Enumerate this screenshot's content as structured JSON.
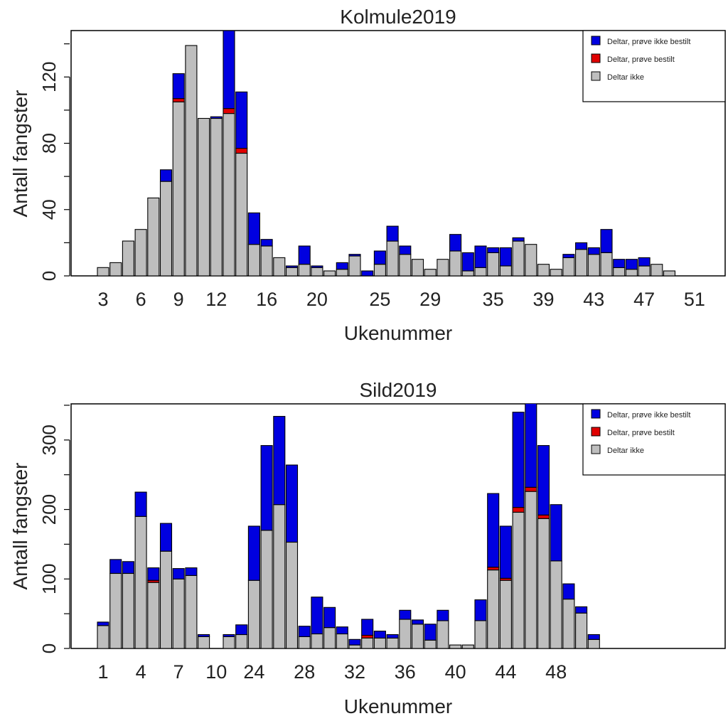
{
  "colors": {
    "participating_not_ordered": "#0000e0",
    "participating_ordered": "#e00000",
    "not_participating": "#bebebe"
  },
  "legend_labels": [
    "Deltar, prøve ikke bestilt",
    "Deltar, prøve bestilt",
    "Deltar ikke"
  ],
  "chart_data": [
    {
      "type": "bar",
      "stacked": true,
      "title": "Kolmule2019",
      "xlabel": "Ukenummer",
      "ylabel": "Antall fangster",
      "ylim": [
        0,
        148
      ],
      "yticks": [
        0,
        40,
        80,
        120
      ],
      "legend_position": "top-right",
      "categories": [
        "3",
        "4",
        "5",
        "6",
        "7",
        "8",
        "9",
        "10",
        "11",
        "12",
        "13",
        "14",
        "15",
        "16",
        "17",
        "18",
        "19",
        "20",
        "21",
        "22",
        "23",
        "24",
        "25",
        "26",
        "27",
        "28",
        "29",
        "30",
        "31",
        "32",
        "33",
        "34",
        "35",
        "36",
        "37",
        "38",
        "39",
        "40",
        "41",
        "42",
        "43",
        "44",
        "45",
        "46",
        "47",
        "48",
        "49",
        "50",
        "51"
      ],
      "x_tick_labels": [
        "3",
        "6",
        "9",
        "12",
        "16",
        "20",
        "25",
        "29",
        "35",
        "39",
        "43",
        "47",
        "51"
      ],
      "x_tick_indices": [
        0,
        3,
        6,
        9,
        13,
        17,
        22,
        26,
        31,
        35,
        39,
        43,
        47
      ],
      "series": [
        {
          "name": "Deltar ikke",
          "values": [
            5,
            8,
            21,
            28,
            47,
            57,
            105,
            139,
            95,
            95,
            98,
            74,
            19,
            18,
            11,
            5,
            7,
            5,
            3,
            4,
            12,
            0,
            7,
            21,
            13,
            10,
            4,
            10,
            15,
            3,
            5,
            14,
            6,
            21,
            19,
            7,
            4,
            11,
            16,
            13,
            14,
            5,
            4,
            6,
            7,
            3,
            0,
            0,
            0
          ]
        },
        {
          "name": "Deltar, prøve bestilt",
          "values": [
            0,
            0,
            0,
            0,
            0,
            0,
            2,
            0,
            0,
            0,
            3,
            3,
            0,
            0,
            0,
            0,
            0,
            0,
            0,
            0,
            0,
            0,
            0,
            0,
            0,
            0,
            0,
            0,
            0,
            0,
            0,
            0,
            0,
            0,
            0,
            0,
            0,
            0,
            0,
            0,
            0,
            0,
            0,
            0,
            0,
            0,
            0,
            0,
            0
          ]
        },
        {
          "name": "Deltar, prøve ikke bestilt",
          "values": [
            0,
            0,
            0,
            0,
            0,
            7,
            15,
            0,
            0,
            1,
            47,
            34,
            19,
            4,
            0,
            1,
            11,
            1,
            0,
            4,
            1,
            3,
            8,
            9,
            5,
            0,
            0,
            0,
            10,
            11,
            13,
            3,
            11,
            2,
            0,
            0,
            0,
            2,
            4,
            4,
            14,
            5,
            6,
            5,
            0,
            0,
            0,
            0,
            0
          ]
        }
      ]
    },
    {
      "type": "bar",
      "stacked": true,
      "title": "Sild2019",
      "xlabel": "Ukenummer",
      "ylabel": "Antall fangster",
      "ylim": [
        0,
        352
      ],
      "yticks": [
        0,
        100,
        200,
        300
      ],
      "legend_position": "top-right",
      "categories": [
        "1",
        "2",
        "3",
        "4",
        "5",
        "6",
        "7",
        "8",
        "9",
        "10",
        "11",
        "12",
        "24",
        "25",
        "26",
        "27",
        "28",
        "29",
        "30",
        "31",
        "32",
        "33",
        "34",
        "35",
        "36",
        "37",
        "38",
        "39",
        "40",
        "41",
        "42",
        "43",
        "44",
        "45",
        "46",
        "47",
        "48",
        "49",
        "50",
        "51"
      ],
      "x_tick_labels": [
        "1",
        "4",
        "7",
        "10",
        "24",
        "28",
        "32",
        "36",
        "40",
        "44",
        "48"
      ],
      "x_tick_indices": [
        0,
        3,
        6,
        9,
        12,
        16,
        20,
        24,
        28,
        32,
        36
      ],
      "series": [
        {
          "name": "Deltar ikke",
          "values": [
            33,
            108,
            108,
            190,
            95,
            140,
            100,
            105,
            17,
            0,
            17,
            20,
            98,
            170,
            207,
            153,
            17,
            21,
            30,
            21,
            5,
            15,
            15,
            15,
            42,
            35,
            12,
            40,
            5,
            5,
            40,
            113,
            98,
            196,
            226,
            187,
            126,
            71,
            51,
            13
          ]
        },
        {
          "name": "Deltar, prøve bestilt",
          "values": [
            0,
            0,
            0,
            0,
            3,
            0,
            0,
            0,
            0,
            0,
            0,
            0,
            0,
            0,
            0,
            0,
            0,
            0,
            0,
            0,
            0,
            4,
            0,
            0,
            0,
            0,
            0,
            0,
            0,
            0,
            0,
            4,
            3,
            7,
            6,
            5,
            0,
            0,
            0,
            0
          ]
        },
        {
          "name": "Deltar, prøve ikke bestilt",
          "values": [
            5,
            20,
            17,
            35,
            18,
            40,
            15,
            11,
            3,
            0,
            3,
            14,
            78,
            122,
            127,
            111,
            15,
            53,
            29,
            10,
            8,
            23,
            10,
            5,
            13,
            6,
            23,
            15,
            0,
            0,
            30,
            106,
            75,
            137,
            138,
            100,
            81,
            22,
            9,
            7
          ]
        }
      ]
    }
  ]
}
